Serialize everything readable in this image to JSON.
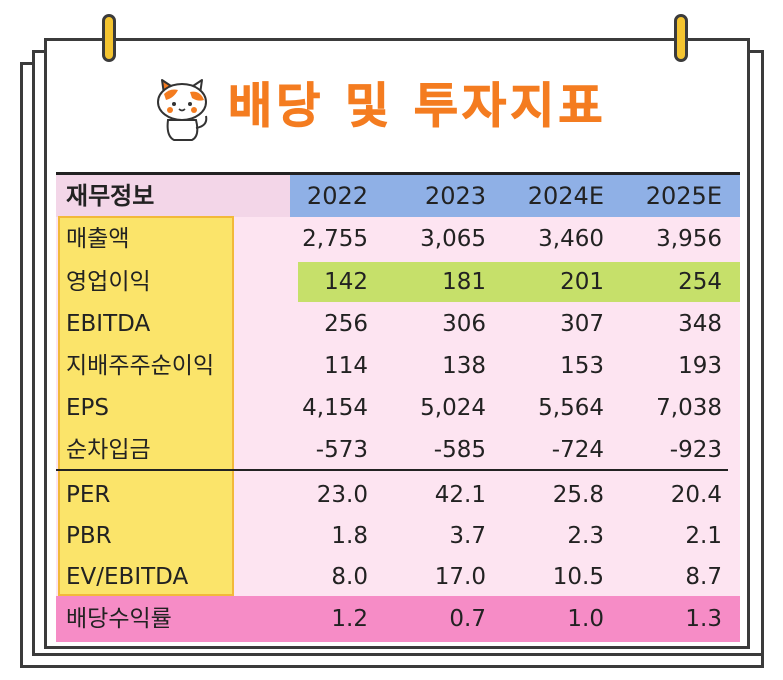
{
  "title": "배당 및 투자지표",
  "colors": {
    "title": "#f47c20",
    "header_years": "#8fb0e6",
    "header_label": "#f3d6e8",
    "label_column": "#fbe46a",
    "operating_profit_row": "#c6e06a",
    "dividend_row": "#f68cc6",
    "table_background": "#fde4f1",
    "pin": "#f4c430"
  },
  "icons": [
    "pin-icon",
    "cat-mascot-icon"
  ],
  "table": {
    "header": {
      "label": "재무정보",
      "years": [
        "2022",
        "2023",
        "2024E",
        "2025E"
      ]
    },
    "rows": [
      {
        "label": "매출액",
        "values": [
          "2,755",
          "3,065",
          "3,460",
          "3,956"
        ]
      },
      {
        "label": "영업이익",
        "values": [
          "142",
          "181",
          "201",
          "254"
        ]
      },
      {
        "label": "EBITDA",
        "values": [
          "256",
          "306",
          "307",
          "348"
        ]
      },
      {
        "label": "지배주주순이익",
        "values": [
          "114",
          "138",
          "153",
          "193"
        ]
      },
      {
        "label": "EPS",
        "values": [
          "4,154",
          "5,024",
          "5,564",
          "7,038"
        ]
      },
      {
        "label": "순차입금",
        "values": [
          "-573",
          "-585",
          "-724",
          "-923"
        ]
      },
      {
        "label": "PER",
        "values": [
          "23.0",
          "42.1",
          "25.8",
          "20.4"
        ]
      },
      {
        "label": "PBR",
        "values": [
          "1.8",
          "3.7",
          "2.3",
          "2.1"
        ]
      },
      {
        "label": "EV/EBITDA",
        "values": [
          "8.0",
          "17.0",
          "10.5",
          "8.7"
        ]
      },
      {
        "label": "배당수익률",
        "values": [
          "1.2",
          "0.7",
          "1.0",
          "1.3"
        ]
      }
    ]
  }
}
